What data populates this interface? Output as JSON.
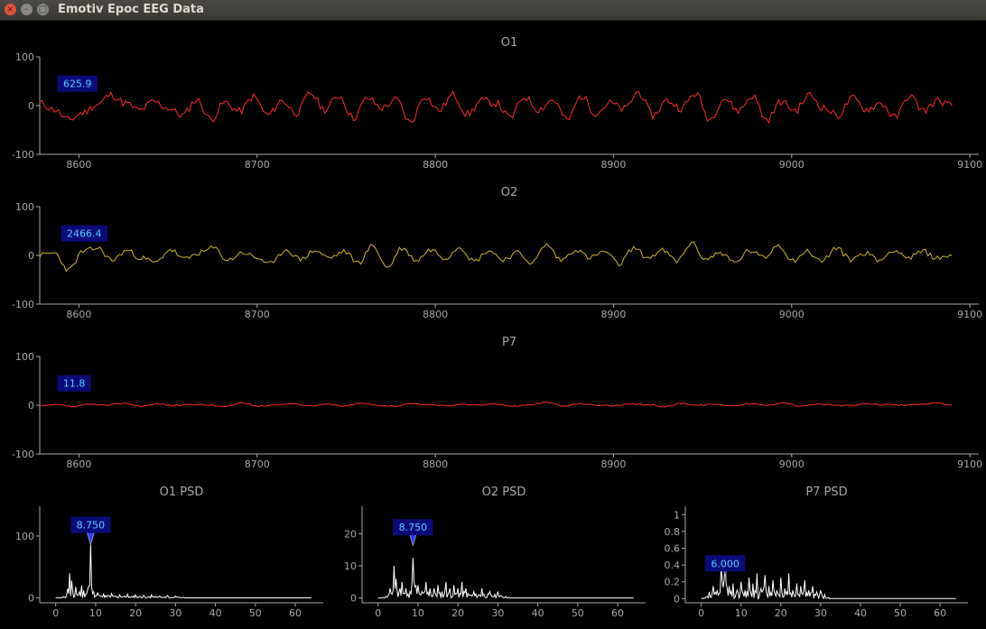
{
  "window": {
    "title": "Emotiv Epoc EEG Data",
    "buttons": {
      "close": "×",
      "minimize": "–",
      "maximize": "□"
    }
  },
  "colors": {
    "background": "#000000",
    "axis": "#a8a8a8",
    "label_bg": "#0a0a7a",
    "label_text": "#4fd2ff",
    "marker": "#2c3cff",
    "red": "#ff2a2a",
    "yellow": "#c9b52a",
    "white": "#ffffff"
  },
  "chart_data": [
    {
      "type": "line",
      "title": "O1",
      "color": "#ff2a2a",
      "xlim": [
        8578,
        9105
      ],
      "ylim": [
        -100,
        100
      ],
      "xticks": [
        8600,
        8700,
        8800,
        8900,
        9000,
        9100
      ],
      "yticks": [
        100,
        0,
        -100
      ],
      "label": "625.9",
      "label_x": 8588,
      "label_y": 45,
      "x_range": [
        8578,
        9090
      ],
      "amplitude": 16,
      "seed": 11,
      "series": [
        {
          "name": "O1",
          "x_start": 8578,
          "x_end": 9090,
          "values": [
            5,
            -8,
            -30,
            -15,
            2,
            22,
            5,
            -10,
            8,
            -5,
            -20,
            12,
            -28,
            6,
            -12,
            18,
            -20,
            10,
            -15,
            25,
            -8,
            20,
            -25,
            15,
            -5,
            12,
            -35,
            20,
            -10,
            22,
            -18,
            10,
            5,
            -25,
            18,
            -8,
            12,
            -30,
            20,
            -15,
            5,
            -8,
            28,
            -20,
            10,
            -5,
            25,
            -28,
            15,
            -10,
            20,
            -30,
            8,
            -10,
            22,
            -5,
            -20,
            15,
            -8,
            5,
            -25,
            20,
            -10,
            10,
            0
          ]
        }
      ]
    },
    {
      "type": "line",
      "title": "O2",
      "color": "#c9b52a",
      "xlim": [
        8578,
        9105
      ],
      "ylim": [
        -100,
        100
      ],
      "xticks": [
        8600,
        8700,
        8800,
        8900,
        9000,
        9100
      ],
      "yticks": [
        100,
        0,
        -100
      ],
      "label": "2466.4",
      "label_x": 8590,
      "label_y": 45,
      "x_range": [
        8578,
        9090
      ],
      "amplitude": 11,
      "seed": 23,
      "series": [
        {
          "name": "O2",
          "x_start": 8578,
          "x_end": 9090,
          "values": [
            0,
            5,
            -30,
            8,
            15,
            -10,
            10,
            -5,
            -15,
            12,
            -8,
            5,
            15,
            -10,
            6,
            -5,
            -18,
            12,
            -8,
            10,
            -5,
            8,
            -15,
            20,
            -25,
            15,
            -10,
            12,
            -5,
            18,
            -12,
            10,
            -8,
            5,
            -15,
            22,
            -10,
            12,
            -5,
            8,
            -18,
            15,
            -5,
            10,
            -12,
            25,
            -8,
            6,
            -15,
            10,
            -5,
            22,
            -10,
            8,
            -12,
            15,
            -8,
            5,
            -10,
            12,
            -5,
            8,
            -6,
            0
          ]
        }
      ]
    },
    {
      "type": "line",
      "title": "P7",
      "color": "#ff2a2a",
      "xlim": [
        8578,
        9105
      ],
      "ylim": [
        -100,
        100
      ],
      "xticks": [
        8600,
        8700,
        8800,
        8900,
        9000,
        9100
      ],
      "yticks": [
        100,
        0,
        -100
      ],
      "label": "11.8",
      "label_x": 8588,
      "label_y": 45,
      "x_range": [
        8578,
        9090
      ],
      "amplitude": 2.5,
      "seed": 37,
      "series": [
        {
          "name": "P7",
          "x_start": 8578,
          "x_end": 9090,
          "values": [
            -2,
            1,
            -3,
            2,
            0,
            4,
            -2,
            3,
            -1,
            2,
            0,
            -3,
            5,
            -2,
            1,
            3,
            -1,
            2,
            -2,
            4,
            0,
            -2,
            3,
            1,
            -1,
            2,
            0,
            3,
            -2,
            1,
            6,
            -2,
            3,
            0,
            -1,
            2,
            1,
            -3,
            4,
            0,
            2,
            -1,
            3,
            0,
            5,
            -2,
            2,
            0,
            -1,
            3,
            1,
            0,
            2,
            4,
            0
          ]
        }
      ]
    },
    {
      "type": "line",
      "title": "O1 PSD",
      "color": "#ffffff",
      "xlim": [
        -4,
        67
      ],
      "ylim": [
        -8,
        148
      ],
      "xticks": [
        0,
        10,
        20,
        30,
        40,
        50,
        60
      ],
      "yticks": [
        100,
        0
      ],
      "label": "8.750",
      "marker_x": 8.75,
      "marker_y": 95,
      "label_x": 8.75,
      "label_y": 118,
      "peaks": [
        [
          3,
          15
        ],
        [
          3.5,
          40
        ],
        [
          4,
          28
        ],
        [
          5,
          18
        ],
        [
          6,
          10
        ],
        [
          6.5,
          20
        ],
        [
          7,
          12
        ],
        [
          8,
          14
        ],
        [
          8.75,
          88
        ],
        [
          9.5,
          10
        ],
        [
          10.5,
          8
        ],
        [
          12,
          6
        ],
        [
          14,
          7
        ],
        [
          16,
          5
        ],
        [
          18,
          6
        ],
        [
          20,
          5
        ],
        [
          22,
          4
        ],
        [
          24,
          5
        ],
        [
          26,
          3
        ],
        [
          28,
          4
        ],
        [
          30,
          3
        ]
      ],
      "series": [
        {
          "name": "O1 PSD",
          "x": [
            0,
            2,
            3,
            3.5,
            4,
            5,
            6,
            6.5,
            7,
            8,
            8.75,
            9.5,
            10.5,
            12,
            14,
            16,
            18,
            20,
            22,
            24,
            26,
            28,
            30,
            32,
            40,
            50,
            60,
            64
          ],
          "values": [
            0,
            2,
            15,
            40,
            28,
            18,
            10,
            20,
            12,
            14,
            88,
            10,
            8,
            6,
            7,
            5,
            6,
            5,
            4,
            5,
            3,
            4,
            3,
            1,
            0,
            0,
            0,
            0
          ]
        }
      ]
    },
    {
      "type": "line",
      "title": "O2 PSD",
      "color": "#ffffff",
      "xlim": [
        -4,
        67
      ],
      "ylim": [
        -1.5,
        28.5
      ],
      "xticks": [
        0,
        10,
        20,
        30,
        40,
        50,
        60
      ],
      "yticks": [
        20,
        10,
        0
      ],
      "label": "8.750",
      "marker_x": 8.75,
      "marker_y": 18,
      "label_x": 8.75,
      "label_y": 22,
      "peaks": [
        [
          3,
          3
        ],
        [
          4,
          10
        ],
        [
          4.5,
          6
        ],
        [
          5.5,
          3
        ],
        [
          6,
          5
        ],
        [
          7,
          3
        ],
        [
          8,
          2
        ],
        [
          8.75,
          12.5
        ],
        [
          10,
          4
        ],
        [
          11,
          2
        ],
        [
          12,
          5
        ],
        [
          13,
          3
        ],
        [
          14,
          3
        ],
        [
          15,
          4
        ],
        [
          16,
          2
        ],
        [
          17,
          5
        ],
        [
          18,
          3
        ],
        [
          19,
          4
        ],
        [
          20,
          3
        ],
        [
          21,
          5
        ],
        [
          22,
          3
        ],
        [
          24,
          2
        ],
        [
          26,
          3
        ],
        [
          28,
          2
        ],
        [
          30,
          2
        ]
      ],
      "series": [
        {
          "name": "O2 PSD",
          "x": [
            0,
            2,
            3,
            4,
            4.5,
            5.5,
            6,
            7,
            8,
            8.75,
            10,
            11,
            12,
            13,
            14,
            15,
            16,
            17,
            18,
            19,
            20,
            21,
            22,
            24,
            26,
            28,
            30,
            32,
            40,
            50,
            60,
            64
          ],
          "values": [
            0,
            0.5,
            3,
            10,
            6,
            3,
            5,
            3,
            2,
            12.5,
            4,
            2,
            5,
            3,
            3,
            4,
            2,
            5,
            3,
            4,
            3,
            5,
            3,
            2,
            3,
            2,
            2,
            0.5,
            0,
            0,
            0,
            0
          ]
        }
      ]
    },
    {
      "type": "line",
      "title": "P7 PSD",
      "color": "#ffffff",
      "xlim": [
        -4,
        67
      ],
      "ylim": [
        -0.05,
        1.1
      ],
      "xticks": [
        0,
        10,
        20,
        30,
        40,
        50,
        60
      ],
      "yticks": [
        1,
        0.8,
        0.6,
        0.4,
        0.2,
        0
      ],
      "label": "6.000",
      "marker_x": 6.0,
      "marker_y": 0.34,
      "label_x": 6.0,
      "label_y": 0.42,
      "peaks": [
        [
          2,
          0.08
        ],
        [
          3,
          0.15
        ],
        [
          4,
          0.1
        ],
        [
          5,
          0.38
        ],
        [
          6,
          0.42
        ],
        [
          7,
          0.15
        ],
        [
          8,
          0.18
        ],
        [
          9,
          0.1
        ],
        [
          10,
          0.2
        ],
        [
          11,
          0.1
        ],
        [
          12,
          0.25
        ],
        [
          13,
          0.18
        ],
        [
          14,
          0.3
        ],
        [
          15,
          0.12
        ],
        [
          16,
          0.28
        ],
        [
          17,
          0.15
        ],
        [
          18,
          0.22
        ],
        [
          19,
          0.1
        ],
        [
          20,
          0.25
        ],
        [
          21,
          0.12
        ],
        [
          22,
          0.3
        ],
        [
          23,
          0.1
        ],
        [
          24,
          0.18
        ],
        [
          25,
          0.15
        ],
        [
          26,
          0.22
        ],
        [
          27,
          0.1
        ],
        [
          28,
          0.15
        ],
        [
          29,
          0.08
        ],
        [
          30,
          0.1
        ],
        [
          31,
          0.05
        ]
      ],
      "series": [
        {
          "name": "P7 PSD",
          "x": [
            0,
            2,
            3,
            4,
            5,
            6,
            7,
            8,
            9,
            10,
            11,
            12,
            13,
            14,
            15,
            16,
            17,
            18,
            19,
            20,
            21,
            22,
            23,
            24,
            25,
            26,
            27,
            28,
            29,
            30,
            31,
            33,
            40,
            50,
            60,
            64
          ],
          "values": [
            0,
            0.08,
            0.15,
            0.1,
            0.38,
            0.42,
            0.15,
            0.18,
            0.1,
            0.2,
            0.1,
            0.25,
            0.18,
            0.3,
            0.12,
            0.28,
            0.15,
            0.22,
            0.1,
            0.25,
            0.12,
            0.3,
            0.1,
            0.18,
            0.15,
            0.22,
            0.1,
            0.15,
            0.08,
            0.1,
            0.05,
            0,
            0,
            0,
            0,
            0
          ]
        }
      ]
    }
  ]
}
